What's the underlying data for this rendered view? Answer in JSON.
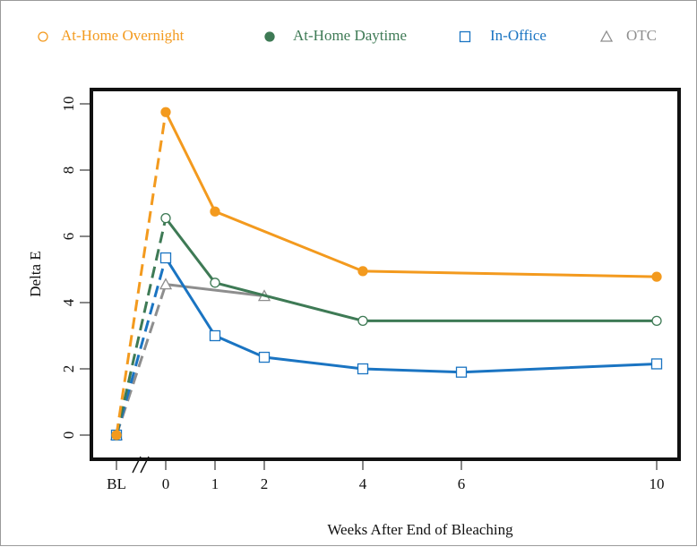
{
  "chart_data": {
    "type": "line",
    "title": "",
    "xlabel": "Weeks After End of Bleaching",
    "ylabel": "Delta E",
    "x_ticks": [
      "BL",
      "0",
      "1",
      "2",
      "4",
      "6",
      "10"
    ],
    "y_ticks": [
      "0",
      "2",
      "4",
      "6",
      "8",
      "10"
    ],
    "ylim": [
      0,
      10
    ],
    "axis_break_after": "BL",
    "legend_position": "top",
    "series": [
      {
        "name": "At-Home Overnight",
        "color": "#f39a1e",
        "marker": "filled-circle",
        "legend_marker": "open-circle",
        "x": [
          "BL",
          "0",
          "1",
          "4",
          "10"
        ],
        "y": [
          0.0,
          9.75,
          6.75,
          4.95,
          4.78
        ]
      },
      {
        "name": "At-Home Daytime",
        "color": "#3e7a55",
        "marker": "open-circle",
        "legend_marker": "filled-circle",
        "x": [
          "BL",
          "0",
          "1",
          "4",
          "10"
        ],
        "y": [
          0.0,
          6.55,
          4.6,
          3.45,
          3.45
        ]
      },
      {
        "name": "In-Office",
        "color": "#1a74c2",
        "marker": "open-square",
        "legend_marker": "open-square",
        "x": [
          "BL",
          "0",
          "1",
          "2",
          "4",
          "6",
          "10"
        ],
        "y": [
          0.0,
          5.35,
          3.0,
          2.35,
          2.0,
          1.9,
          2.15
        ]
      },
      {
        "name": "OTC",
        "color": "#8e8e8e",
        "marker": "open-triangle",
        "legend_marker": "open-triangle",
        "x": [
          "BL",
          "0",
          "2"
        ],
        "y": [
          0.0,
          4.55,
          4.2
        ]
      }
    ]
  }
}
